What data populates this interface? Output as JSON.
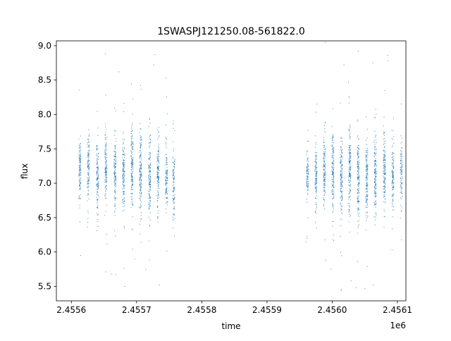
{
  "chart_data": {
    "type": "scatter",
    "title": "1SWASPJ121250.08-561822.0",
    "xlabel": "time",
    "ylabel": "flux",
    "x_offset_label": "1e6",
    "x_tick_labels": [
      "2.4556",
      "2.4557",
      "2.4558",
      "2.4559",
      "2.4560",
      "2.4561"
    ],
    "y_tick_labels": [
      "5.5",
      "6.0",
      "6.5",
      "7.0",
      "7.5",
      "8.0",
      "8.5",
      "9.0"
    ],
    "xlim": [
      2455577,
      2456113
    ],
    "ylim": [
      5.29,
      9.07
    ],
    "grid": false,
    "legend": false,
    "colors": {
      "points": "#1f77b4"
    },
    "series": [
      {
        "clusters": [
          {
            "x": 2455613,
            "mean": 7.2,
            "spread": 0.28,
            "n": 120
          },
          {
            "x": 2455626,
            "mean": 7.15,
            "spread": 0.3,
            "n": 120
          },
          {
            "x": 2455640,
            "mean": 7.1,
            "spread": 0.3,
            "n": 130
          },
          {
            "x": 2455653,
            "mean": 7.2,
            "spread": 0.3,
            "n": 130
          },
          {
            "x": 2455667,
            "mean": 7.15,
            "spread": 0.33,
            "n": 140
          },
          {
            "x": 2455680,
            "mean": 7.1,
            "spread": 0.3,
            "n": 140
          },
          {
            "x": 2455693,
            "mean": 7.25,
            "spread": 0.38,
            "n": 160
          },
          {
            "x": 2455706,
            "mean": 7.15,
            "spread": 0.38,
            "n": 160
          },
          {
            "x": 2455720,
            "mean": 7.1,
            "spread": 0.36,
            "n": 150
          },
          {
            "x": 2455733,
            "mean": 7.15,
            "spread": 0.35,
            "n": 140
          },
          {
            "x": 2455746,
            "mean": 7.05,
            "spread": 0.3,
            "n": 120
          },
          {
            "x": 2455757,
            "mean": 7.0,
            "spread": 0.3,
            "n": 110
          },
          {
            "x": 2455962,
            "mean": 7.15,
            "spread": 0.22,
            "n": 90
          },
          {
            "x": 2455975,
            "mean": 7.1,
            "spread": 0.3,
            "n": 120
          },
          {
            "x": 2455988,
            "mean": 7.2,
            "spread": 0.33,
            "n": 140
          },
          {
            "x": 2456001,
            "mean": 7.15,
            "spread": 0.36,
            "n": 150
          },
          {
            "x": 2456014,
            "mean": 7.1,
            "spread": 0.36,
            "n": 150
          },
          {
            "x": 2456027,
            "mean": 7.2,
            "spread": 0.38,
            "n": 160
          },
          {
            "x": 2456040,
            "mean": 7.1,
            "spread": 0.38,
            "n": 160
          },
          {
            "x": 2456053,
            "mean": 7.05,
            "spread": 0.36,
            "n": 150
          },
          {
            "x": 2456066,
            "mean": 7.1,
            "spread": 0.36,
            "n": 150
          },
          {
            "x": 2456080,
            "mean": 7.15,
            "spread": 0.38,
            "n": 150
          },
          {
            "x": 2456093,
            "mean": 7.1,
            "spread": 0.3,
            "n": 120
          },
          {
            "x": 2456106,
            "mean": 7.15,
            "spread": 0.28,
            "n": 100
          }
        ],
        "outliers": [
          [
            2455652,
            8.88
          ],
          [
            2455728,
            8.87
          ],
          [
            2455706,
            8.42
          ],
          [
            2455673,
            8.62
          ],
          [
            2455662,
            5.68
          ],
          [
            2455714,
            5.75
          ],
          [
            2455735,
            5.52
          ],
          [
            2455682,
            5.5
          ],
          [
            2455726,
            8.72
          ],
          [
            2456025,
            8.47
          ],
          [
            2456040,
            8.92
          ],
          [
            2456018,
            8.72
          ],
          [
            2456085,
            8.86
          ],
          [
            2456062,
            8.75
          ],
          [
            2456037,
            5.48
          ],
          [
            2456050,
            5.47
          ],
          [
            2456063,
            5.52
          ],
          [
            2455998,
            5.75
          ],
          [
            2456029,
            5.58
          ],
          [
            2455960,
            6.15
          ],
          [
            2455614,
            5.95
          ],
          [
            2455697,
            5.9
          ],
          [
            2456085,
            8.78
          ],
          [
            2455990,
            5.88
          ]
        ]
      }
    ]
  }
}
